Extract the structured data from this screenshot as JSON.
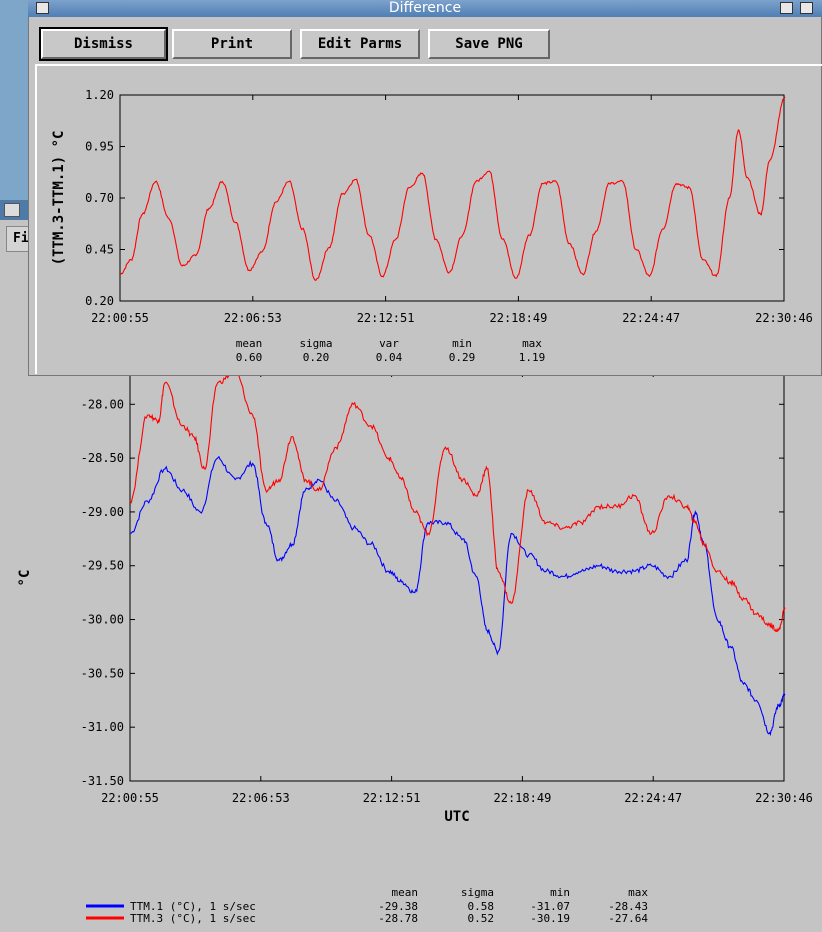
{
  "window_title": "Difference",
  "back_menu_label": "Fi",
  "buttons": {
    "dismiss": "Dismiss",
    "print": "Print",
    "edit": "Edit Parms",
    "save": "Save PNG"
  },
  "chart_data": [
    {
      "type": "line",
      "ylabel": "(TTM.3-TTM.1) °C",
      "xlabel": "",
      "ylim": [
        0.2,
        1.2
      ],
      "yticks": [
        "0.20",
        "0.45",
        "0.70",
        "0.95",
        "1.20"
      ],
      "xticks": [
        "22:00:55",
        "22:06:53",
        "22:12:51",
        "22:18:49",
        "22:24:47",
        "22:30:46"
      ],
      "series": [
        {
          "name": "",
          "color": "#ff0000",
          "x_minutes": [
            0,
            0.5,
            1.0,
            1.6,
            2.2,
            2.8,
            3.4,
            4.0,
            4.6,
            5.2,
            5.8,
            6.4,
            7.0,
            7.6,
            8.2,
            8.8,
            9.4,
            10.0,
            10.6,
            11.2,
            11.8,
            12.4,
            13.0,
            13.6,
            14.2,
            14.8,
            15.4,
            16.0,
            16.6,
            17.2,
            17.8,
            18.4,
            19.0,
            19.6,
            20.2,
            20.8,
            21.4,
            22.0,
            22.6,
            23.2,
            23.8,
            24.4,
            25.0,
            25.6,
            26.2,
            26.8,
            27.4,
            27.8,
            28.2,
            28.8,
            29.2,
            29.9
          ],
          "values": [
            0.33,
            0.4,
            0.62,
            0.78,
            0.6,
            0.37,
            0.42,
            0.65,
            0.78,
            0.58,
            0.35,
            0.44,
            0.68,
            0.78,
            0.55,
            0.3,
            0.46,
            0.72,
            0.79,
            0.52,
            0.32,
            0.5,
            0.75,
            0.82,
            0.5,
            0.34,
            0.52,
            0.78,
            0.83,
            0.5,
            0.31,
            0.52,
            0.77,
            0.78,
            0.48,
            0.33,
            0.54,
            0.77,
            0.78,
            0.45,
            0.32,
            0.55,
            0.77,
            0.75,
            0.4,
            0.32,
            0.7,
            1.03,
            0.8,
            0.62,
            0.88,
            1.19
          ]
        }
      ]
    },
    {
      "type": "line",
      "ylabel": "°C",
      "xlabel": "UTC",
      "ylim": [
        -31.5,
        -27.7
      ],
      "yticks": [
        "-28.00",
        "-28.50",
        "-29.00",
        "-29.50",
        "-30.00",
        "-30.50",
        "-31.00",
        "-31.50"
      ],
      "xticks": [
        "22:00:55",
        "22:06:53",
        "22:12:51",
        "22:18:49",
        "22:24:47",
        "22:30:46"
      ],
      "stats_header": [
        "mean",
        "sigma",
        "min",
        "max"
      ],
      "series": [
        {
          "name": "TTM.1 (°C), 1 s/sec",
          "color": "#0000ff",
          "stats": [
            "-29.38",
            "0.58",
            "-31.07",
            "-28.43"
          ],
          "x_minutes": [
            0,
            0.8,
            1.6,
            2.4,
            3.2,
            4.0,
            4.8,
            5.6,
            6.2,
            6.8,
            7.4,
            8.0,
            8.6,
            9.4,
            10.2,
            11.0,
            11.8,
            12.4,
            13.0,
            13.6,
            14.4,
            15.2,
            15.8,
            16.3,
            16.8,
            17.4,
            18.2,
            19.0,
            19.8,
            20.6,
            21.4,
            22.2,
            23.0,
            23.8,
            24.6,
            25.4,
            25.8,
            26.2,
            26.8,
            27.4,
            28.0,
            28.6,
            29.2,
            29.6,
            29.9
          ],
          "values": [
            -29.2,
            -28.9,
            -28.6,
            -28.8,
            -29.0,
            -28.5,
            -28.7,
            -28.55,
            -29.1,
            -29.45,
            -29.3,
            -28.8,
            -28.7,
            -28.9,
            -29.15,
            -29.3,
            -29.55,
            -29.65,
            -29.75,
            -29.1,
            -29.1,
            -29.25,
            -29.6,
            -30.1,
            -30.3,
            -29.2,
            -29.4,
            -29.55,
            -29.6,
            -29.55,
            -29.5,
            -29.55,
            -29.55,
            -29.5,
            -29.6,
            -29.45,
            -29.0,
            -29.3,
            -30.0,
            -30.25,
            -30.6,
            -30.75,
            -31.05,
            -30.8,
            -30.7
          ]
        },
        {
          "name": "TTM.3 (°C), 1 s/sec",
          "color": "#ff0000",
          "stats": [
            "-28.78",
            "0.52",
            "-30.19",
            "-27.64"
          ],
          "x_minutes": [
            0,
            0.8,
            1.3,
            1.6,
            2.4,
            2.9,
            3.4,
            4.0,
            4.8,
            5.6,
            6.2,
            6.8,
            7.4,
            8.0,
            8.6,
            9.4,
            10.2,
            11.0,
            11.8,
            12.4,
            13.0,
            13.6,
            14.4,
            15.2,
            15.8,
            16.3,
            16.8,
            17.4,
            18.2,
            19.0,
            19.8,
            20.6,
            21.4,
            22.2,
            23.0,
            23.8,
            24.6,
            25.4,
            25.8,
            26.2,
            26.8,
            27.4,
            28.0,
            28.6,
            29.2,
            29.6,
            29.9
          ],
          "values": [
            -28.9,
            -28.1,
            -28.15,
            -27.8,
            -28.2,
            -28.3,
            -28.6,
            -27.8,
            -27.7,
            -28.1,
            -28.8,
            -28.7,
            -28.3,
            -28.7,
            -28.8,
            -28.4,
            -28.0,
            -28.2,
            -28.5,
            -28.7,
            -29.0,
            -29.2,
            -28.4,
            -28.7,
            -28.85,
            -28.6,
            -29.55,
            -29.85,
            -28.8,
            -29.1,
            -29.15,
            -29.1,
            -28.95,
            -28.95,
            -28.85,
            -29.2,
            -28.85,
            -28.95,
            -29.1,
            -29.3,
            -29.55,
            -29.65,
            -29.8,
            -29.95,
            -30.05,
            -30.1,
            -29.9
          ]
        }
      ]
    }
  ],
  "top_stats": {
    "headers": [
      "mean",
      "sigma",
      "var",
      "min",
      "max"
    ],
    "values": [
      "0.60",
      "0.20",
      "0.04",
      "0.29",
      "1.19"
    ]
  }
}
